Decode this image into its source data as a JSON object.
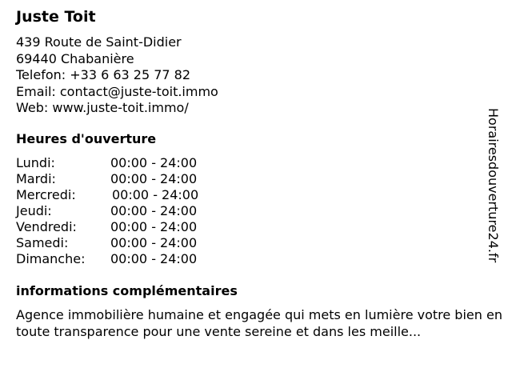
{
  "business": {
    "name": "Juste Toit",
    "address_line1": "439 Route de Saint-Didier",
    "address_line2": "69440 Chabanière",
    "phone": "Telefon: +33 6 63 25 77 82",
    "email": "Email: contact@juste-toit.immo",
    "web": "Web: www.juste-toit.immo/"
  },
  "hours": {
    "heading": "Heures d'ouverture",
    "days": [
      {
        "day": "Lundi:",
        "time": "00:00 - 24:00"
      },
      {
        "day": "Mardi:",
        "time": "00:00 - 24:00"
      },
      {
        "day": "Mercredi:",
        "time": "00:00 - 24:00"
      },
      {
        "day": "Jeudi:",
        "time": "00:00 - 24:00"
      },
      {
        "day": "Vendredi:",
        "time": "00:00 - 24:00"
      },
      {
        "day": "Samedi:",
        "time": "00:00 - 24:00"
      },
      {
        "day": "Dimanche:",
        "time": "00:00 - 24:00"
      }
    ]
  },
  "info": {
    "heading": "informations complémentaires",
    "text": "Agence immobilière humaine et engagée qui mets en lumière votre bien en toute transparence pour une vente sereine et dans les meille..."
  },
  "watermark": "Horairesdouverture24.fr"
}
